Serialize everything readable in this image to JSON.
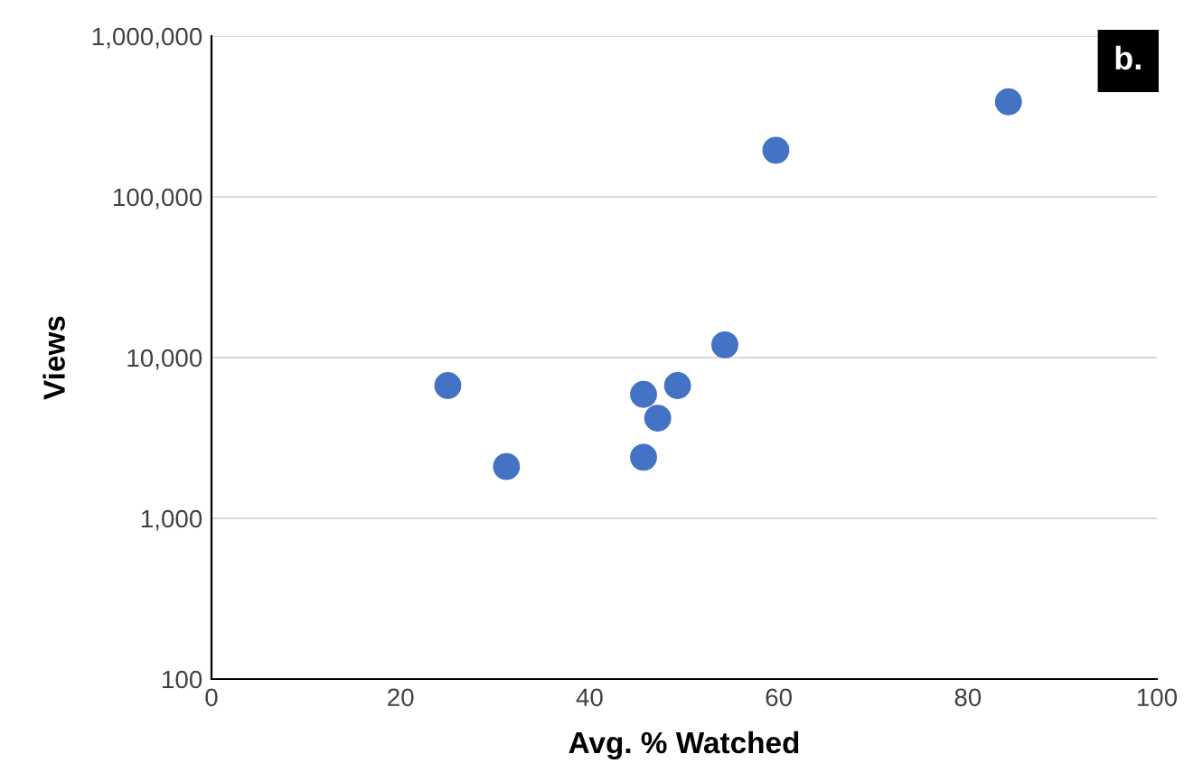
{
  "chart_data": {
    "type": "scatter",
    "xlabel": "Avg. % Watched",
    "ylabel": "Views",
    "x": [
      25.0,
      31.2,
      45.7,
      45.7,
      47.2,
      49.3,
      54.3,
      59.7,
      84.3
    ],
    "series": [
      {
        "color": "#4472c4",
        "values": [
          6700,
          2100,
          5900,
          2400,
          4200,
          6700,
          12000,
          195000,
          390000
        ]
      }
    ],
    "xlim": [
      0,
      100
    ],
    "xticks": [
      0,
      20,
      40,
      60,
      80,
      100
    ],
    "ylim": [
      100,
      1000000
    ],
    "yticks": [
      {
        "value": 100,
        "label": "100"
      },
      {
        "value": 1000,
        "label": "1,000"
      },
      {
        "value": 10000,
        "label": "10,000"
      },
      {
        "value": 100000,
        "label": "100,000"
      },
      {
        "value": 1000000,
        "label": "1,000,000"
      }
    ],
    "log": "y",
    "grid": "y",
    "marker": "circle",
    "annotations": [
      "b."
    ]
  }
}
